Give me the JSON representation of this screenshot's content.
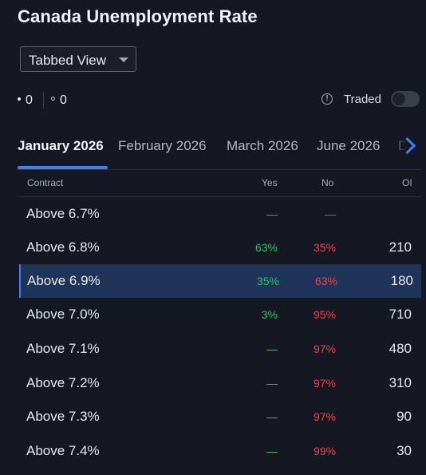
{
  "page": {
    "title": "Canada Unemployment Rate"
  },
  "view_select": {
    "value": "Tabbed View"
  },
  "counts": {
    "filled": "0",
    "hollow": "0"
  },
  "traded": {
    "info_icon": "info-circle-icon",
    "label": "Traded",
    "enabled": false
  },
  "tabs": [
    {
      "label": "January 2026",
      "active": true
    },
    {
      "label": "February 2026",
      "active": false
    },
    {
      "label": "March 2026",
      "active": false
    },
    {
      "label": "June 2026",
      "active": false
    },
    {
      "label": "De",
      "active": false
    }
  ],
  "table": {
    "headers": {
      "contract": "Contract",
      "yes": "Yes",
      "no": "No",
      "oi": "OI"
    },
    "rows": [
      {
        "contract": "Above 6.7%",
        "yes": "—",
        "no": "—",
        "oi": ""
      },
      {
        "contract": "Above 6.8%",
        "yes": "63%",
        "no": "35%",
        "oi": "210"
      },
      {
        "contract": "Above 6.9%",
        "yes": "35%",
        "no": "63%",
        "oi": "180",
        "selected": true
      },
      {
        "contract": "Above 7.0%",
        "yes": "3%",
        "no": "95%",
        "oi": "710"
      },
      {
        "contract": "Above 7.1%",
        "yes": "—",
        "no": "97%",
        "oi": "480"
      },
      {
        "contract": "Above 7.2%",
        "yes": "—",
        "no": "97%",
        "oi": "310"
      },
      {
        "contract": "Above 7.3%",
        "yes": "—",
        "no": "97%",
        "oi": "90"
      },
      {
        "contract": "Above 7.4%",
        "yes": "—",
        "no": "99%",
        "oi": "30"
      }
    ]
  },
  "colors": {
    "accent": "#3b82f6",
    "yes": "#22c55e",
    "no": "#ef4444",
    "background": "#151823",
    "selected_row": "#1e3458"
  }
}
